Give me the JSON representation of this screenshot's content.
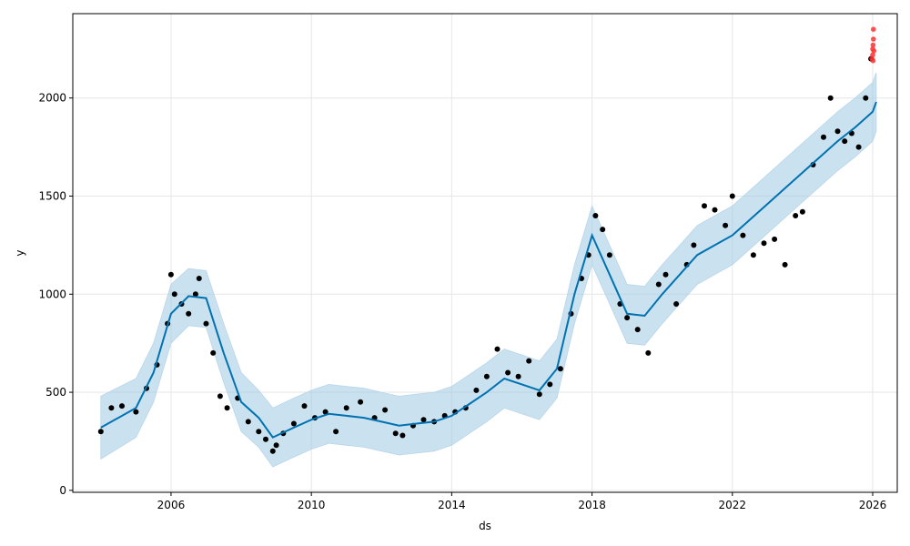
{
  "chart_data": {
    "type": "scatter",
    "title": "",
    "xlabel": "ds",
    "ylabel": "y",
    "xlim": [
      2003.2,
      2026.7
    ],
    "ylim": [
      -10,
      2430
    ],
    "grid": true,
    "x_ticks": [
      2006,
      2010,
      2014,
      2018,
      2022,
      2026
    ],
    "y_ticks": [
      0,
      500,
      1000,
      1500,
      2000
    ],
    "colors": {
      "observed": "#000000",
      "recent": "#ff3333",
      "forecast": "#0072B2",
      "band": "#9ecae1"
    },
    "series": [
      {
        "role": "observed",
        "x": [
          2004.0,
          2004.3,
          2004.6,
          2005.0,
          2005.3,
          2005.6,
          2005.9,
          2006.0,
          2006.1,
          2006.3,
          2006.5,
          2006.7,
          2006.8,
          2007.0,
          2007.2,
          2007.4,
          2007.6,
          2007.9,
          2008.2,
          2008.5,
          2008.7,
          2008.9,
          2009.0,
          2009.2,
          2009.5,
          2009.8,
          2010.1,
          2010.4,
          2010.7,
          2011.0,
          2011.4,
          2011.8,
          2012.1,
          2012.4,
          2012.6,
          2012.9,
          2013.2,
          2013.5,
          2013.8,
          2014.1,
          2014.4,
          2014.7,
          2015.0,
          2015.3,
          2015.6,
          2015.9,
          2016.2,
          2016.5,
          2016.8,
          2017.1,
          2017.4,
          2017.7,
          2017.9,
          2018.1,
          2018.3,
          2018.5,
          2018.8,
          2019.0,
          2019.3,
          2019.6,
          2019.9,
          2020.1,
          2020.4,
          2020.7,
          2020.9,
          2021.2,
          2021.5,
          2021.8,
          2022.0,
          2022.3,
          2022.6,
          2022.9,
          2023.2,
          2023.5,
          2023.8,
          2024.0,
          2024.3,
          2024.6,
          2024.8,
          2025.0,
          2025.2,
          2025.4,
          2025.6,
          2025.8,
          2025.95
        ],
        "values": [
          300,
          420,
          430,
          400,
          520,
          640,
          850,
          1100,
          1000,
          950,
          900,
          1000,
          1080,
          850,
          700,
          480,
          420,
          470,
          350,
          300,
          260,
          200,
          230,
          290,
          340,
          430,
          370,
          400,
          300,
          420,
          450,
          370,
          410,
          290,
          280,
          330,
          360,
          350,
          380,
          400,
          420,
          510,
          580,
          720,
          600,
          580,
          660,
          490,
          540,
          620,
          900,
          1080,
          1200,
          1400,
          1330,
          1200,
          950,
          880,
          820,
          700,
          1050,
          1100,
          950,
          1150,
          1250,
          1450,
          1430,
          1350,
          1500,
          1300,
          1200,
          1260,
          1280,
          1150,
          1400,
          1420,
          1660,
          1800,
          2000,
          1830,
          1780,
          1820,
          1750,
          2000,
          2200
        ]
      },
      {
        "role": "recent",
        "x": [
          2025.98,
          2026.0,
          2026.0,
          2026.01,
          2026.01,
          2026.02,
          2026.02,
          2026.03
        ],
        "values": [
          2200,
          2250,
          2220,
          2270,
          2190,
          2300,
          2350,
          2240
        ]
      },
      {
        "role": "forecast",
        "x": [
          2004.0,
          2005.0,
          2005.5,
          2006.0,
          2006.5,
          2007.0,
          2007.5,
          2008.0,
          2008.5,
          2008.9,
          2009.5,
          2010.0,
          2010.5,
          2011.0,
          2011.5,
          2012.0,
          2012.5,
          2013.0,
          2013.5,
          2014.0,
          2014.5,
          2015.0,
          2015.5,
          2016.0,
          2016.5,
          2017.0,
          2017.5,
          2018.0,
          2018.5,
          2019.0,
          2019.5,
          2020.0,
          2020.5,
          2021.0,
          2021.5,
          2022.0,
          2022.5,
          2023.0,
          2023.5,
          2024.0,
          2024.5,
          2025.0,
          2025.5,
          2026.0,
          2026.1
        ],
        "values": [
          320,
          420,
          600,
          900,
          990,
          980,
          700,
          450,
          370,
          270,
          320,
          360,
          390,
          380,
          370,
          350,
          330,
          340,
          350,
          380,
          440,
          500,
          570,
          540,
          510,
          620,
          1000,
          1300,
          1100,
          900,
          890,
          1000,
          1100,
          1200,
          1250,
          1300,
          1380,
          1460,
          1540,
          1620,
          1700,
          1780,
          1850,
          1930,
          1980
        ]
      },
      {
        "role": "band",
        "x": [
          2004.0,
          2005.0,
          2005.5,
          2006.0,
          2006.5,
          2007.0,
          2007.5,
          2008.0,
          2008.5,
          2008.9,
          2009.5,
          2010.0,
          2010.5,
          2011.0,
          2011.5,
          2012.0,
          2012.5,
          2013.0,
          2013.5,
          2014.0,
          2014.5,
          2015.0,
          2015.5,
          2016.0,
          2016.5,
          2017.0,
          2017.5,
          2018.0,
          2018.5,
          2019.0,
          2019.5,
          2020.0,
          2020.5,
          2021.0,
          2021.5,
          2022.0,
          2022.5,
          2023.0,
          2023.5,
          2024.0,
          2024.5,
          2025.0,
          2025.5,
          2026.0,
          2026.1
        ],
        "upper": [
          480,
          570,
          750,
          1050,
          1130,
          1120,
          850,
          600,
          510,
          420,
          470,
          510,
          540,
          530,
          520,
          500,
          480,
          490,
          500,
          530,
          590,
          650,
          720,
          690,
          660,
          770,
          1150,
          1450,
          1250,
          1050,
          1040,
          1150,
          1250,
          1350,
          1400,
          1450,
          1530,
          1610,
          1690,
          1770,
          1850,
          1930,
          2000,
          2080,
          2130
        ],
        "lower": [
          160,
          270,
          450,
          750,
          840,
          830,
          550,
          300,
          220,
          120,
          170,
          210,
          240,
          230,
          220,
          200,
          180,
          190,
          200,
          230,
          290,
          350,
          420,
          390,
          360,
          470,
          850,
          1150,
          950,
          750,
          740,
          850,
          950,
          1050,
          1100,
          1150,
          1230,
          1310,
          1390,
          1470,
          1550,
          1630,
          1700,
          1780,
          1830
        ]
      }
    ]
  }
}
